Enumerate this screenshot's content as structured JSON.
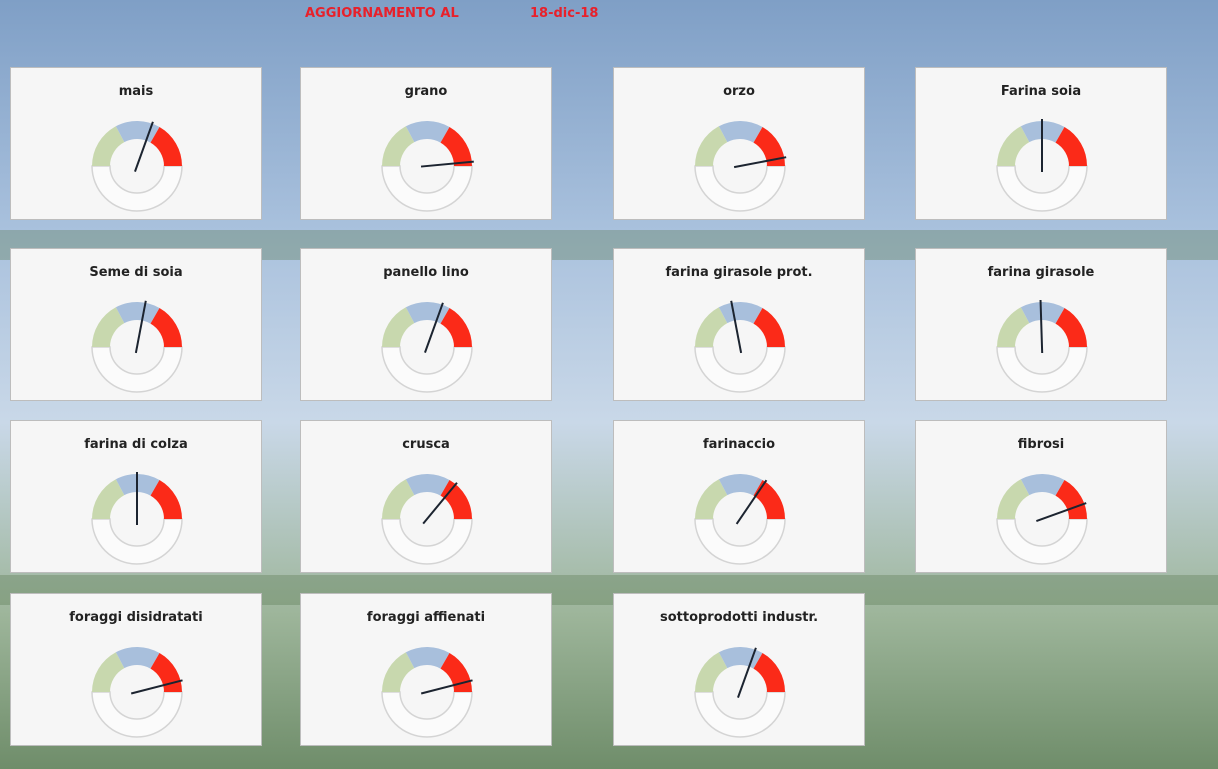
{
  "header": {
    "label": "AGGIORNAMENTO AL",
    "date": "18-dic-18"
  },
  "gauge_range": [
    0,
    100
  ],
  "gauges": [
    {
      "label": "mais",
      "value": 61
    },
    {
      "label": "grano",
      "value": 97
    },
    {
      "label": "orzo",
      "value": 94
    },
    {
      "label": "Farina soia",
      "value": 50
    },
    {
      "label": "Seme di soia",
      "value": 56
    },
    {
      "label": "panello lino",
      "value": 61
    },
    {
      "label": "farina girasole prot.",
      "value": 44
    },
    {
      "label": "farina girasole",
      "value": 49
    },
    {
      "label": "farina di colza",
      "value": 50
    },
    {
      "label": "crusca",
      "value": 72
    },
    {
      "label": "farinaccio",
      "value": 69
    },
    {
      "label": "fibrosi",
      "value": 89
    },
    {
      "label": "foraggi disidratati",
      "value": 92
    },
    {
      "label": "foraggi affienati",
      "value": 92
    },
    {
      "label": "sottoprodotti industr.",
      "value": 61
    }
  ]
}
